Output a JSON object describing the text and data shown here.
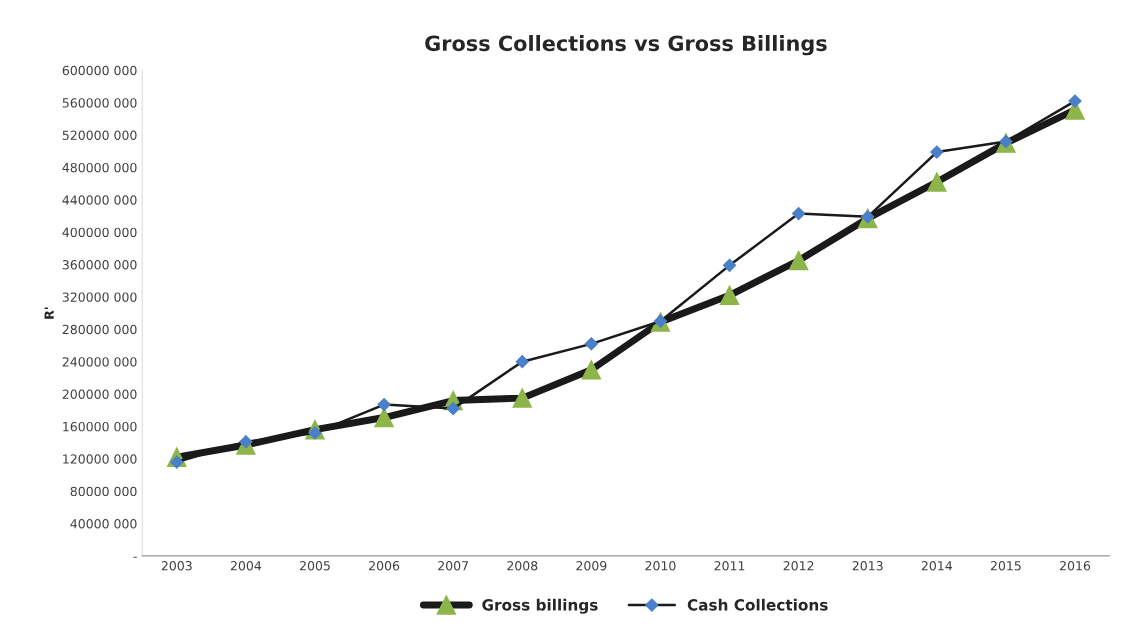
{
  "chart_data": {
    "type": "line",
    "title": "Gross Collections vs Gross Billings",
    "ylabel": "R'",
    "categories": [
      "2003",
      "2004",
      "2005",
      "2006",
      "2007",
      "2008",
      "2009",
      "2010",
      "2011",
      "2012",
      "2013",
      "2014",
      "2015",
      "2016"
    ],
    "series": [
      {
        "name": "Gross billings",
        "color": "#8db54a",
        "marker": "triangle",
        "values": [
          122000000,
          137000000,
          156000000,
          171000000,
          192000000,
          195000000,
          230000000,
          289000000,
          322000000,
          365000000,
          417000000,
          462000000,
          510000000,
          551000000
        ]
      },
      {
        "name": "Cash Collections",
        "color": "#4a7fc9",
        "marker": "diamond",
        "values": [
          116000000,
          141000000,
          152000000,
          187000000,
          182000000,
          240000000,
          262000000,
          290000000,
          359000000,
          423000000,
          419000000,
          499000000,
          512000000,
          562000000
        ]
      }
    ],
    "ylim": [
      0,
      600000000
    ],
    "yticks": [
      {
        "value": 0,
        "label": "-"
      },
      {
        "value": 40000000,
        "label": "40000 000"
      },
      {
        "value": 80000000,
        "label": "80000 000"
      },
      {
        "value": 120000000,
        "label": "120000 000"
      },
      {
        "value": 160000000,
        "label": "160000 000"
      },
      {
        "value": 200000000,
        "label": "200000 000"
      },
      {
        "value": 240000000,
        "label": "240000 000"
      },
      {
        "value": 280000000,
        "label": "280000 000"
      },
      {
        "value": 320000000,
        "label": "320000 000"
      },
      {
        "value": 360000000,
        "label": "360000 000"
      },
      {
        "value": 400000000,
        "label": "400000 000"
      },
      {
        "value": 440000000,
        "label": "440000 000"
      },
      {
        "value": 480000000,
        "label": "480000 000"
      },
      {
        "value": 520000000,
        "label": "520000 000"
      },
      {
        "value": 560000000,
        "label": "560000 000"
      },
      {
        "value": 600000000,
        "label": "600000 000"
      }
    ],
    "grid": false,
    "legend": "bottom"
  }
}
